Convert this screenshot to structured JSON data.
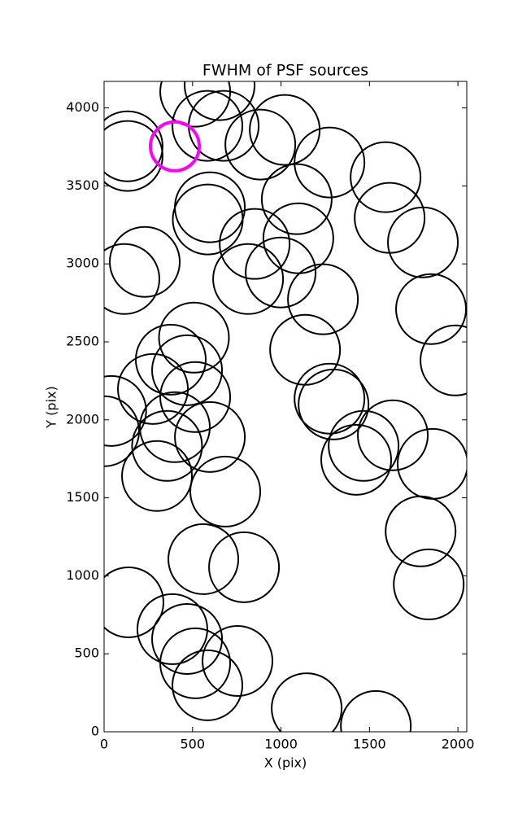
{
  "chart_data": {
    "type": "scatter",
    "title": "FWHM of PSF sources",
    "x_label": "X (pix)",
    "y_label": "Y (pix)",
    "xlim": [
      0,
      2050
    ],
    "ylim": [
      0,
      4170
    ],
    "xticks": [
      0,
      500,
      1000,
      1500,
      2000
    ],
    "yticks": [
      0,
      500,
      1000,
      1500,
      2000,
      2500,
      3000,
      3500,
      4000
    ],
    "series": [
      {
        "color": "#000000",
        "x": [
          515,
          653,
          584,
          676,
          1021,
          883,
          1274,
          133,
          133,
          1591,
          1614,
          1802,
          1848,
          1986,
          1089,
          598,
          586,
          851,
          1098,
          998,
          814,
          1237,
          230,
          115,
          1136,
          508,
          377,
          469,
          276,
          515,
          1274,
          1297,
          40,
          0,
          400,
          598,
          356,
          1632,
          1467,
          1425,
          1857,
          299,
          685,
          1789,
          1835,
          561,
          791,
          138,
          386,
          469,
          515,
          754,
          584,
          1145,
          1536
        ],
        "values": [
          4104,
          4146,
          3885,
          3885,
          3859,
          3765,
          3650,
          3754,
          3692,
          3556,
          3295,
          3138,
          2710,
          2381,
          3415,
          3363,
          3285,
          3128,
          3164,
          2945,
          2903,
          2773,
          3013,
          2903,
          2449,
          2527,
          2386,
          2318,
          2198,
          2146,
          2136,
          2099,
          2057,
          1927,
          1953,
          1890,
          1833,
          1901,
          1833,
          1744,
          1718,
          1640,
          1540,
          1285,
          945,
          1107,
          1055,
          830,
          658,
          595,
          439,
          454,
          298,
          151,
          37
        ]
      },
      {
        "color": "#ff00ff",
        "x": [
          400
        ],
        "values": [
          3754
        ]
      }
    ]
  }
}
